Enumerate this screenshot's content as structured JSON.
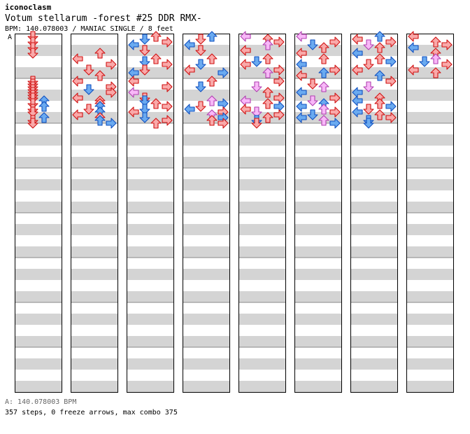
{
  "header": {
    "brand": "iconoclasm",
    "title": "Votum stellarum -forest #25 DDR RMX-",
    "subtitle": "BPM: 140.078003 / MANIAC SINGLE / 8 feet"
  },
  "marker": "A",
  "footer": {
    "bpm_line": "A: 140.078003 BPM",
    "stats_line": "357 steps, 0 freeze arrows, max combo 375"
  },
  "colors": {
    "red_fill": "#f9a9a9",
    "red_stroke": "#d01010",
    "blue_fill": "#6aaaf0",
    "blue_stroke": "#1050c0",
    "pink_fill": "#f8b8f8",
    "pink_stroke": "#b040b0",
    "stripe": "#d4d4d4"
  },
  "chart_data": {
    "type": "step-chart",
    "columns": 8,
    "measures_per_column": 8,
    "lanes": [
      "left",
      "down",
      "up",
      "right"
    ],
    "steps": [
      [
        0,
        0.25,
        1,
        "r"
      ],
      [
        0,
        0.75,
        1,
        "r"
      ],
      [
        0,
        1.25,
        1,
        "r"
      ],
      [
        0,
        1.75,
        1,
        "r"
      ],
      [
        1,
        1.75,
        2,
        "r"
      ],
      [
        1,
        2.25,
        0,
        "r"
      ],
      [
        1,
        2.75,
        3,
        "r"
      ],
      [
        1,
        3.25,
        1,
        "r"
      ],
      [
        1,
        3.75,
        2,
        "r"
      ],
      [
        1,
        4.25,
        0,
        "r"
      ],
      [
        1,
        4.75,
        3,
        "r"
      ],
      [
        1,
        5.0,
        1,
        "b"
      ],
      [
        1,
        5.25,
        3,
        "r"
      ],
      [
        2,
        0.25,
        2,
        "r"
      ],
      [
        2,
        0.5,
        1,
        "b"
      ],
      [
        2,
        0.75,
        3,
        "r"
      ],
      [
        2,
        1.0,
        0,
        "b"
      ],
      [
        2,
        1.5,
        1,
        "r"
      ],
      [
        2,
        2.25,
        2,
        "r"
      ],
      [
        2,
        2.5,
        1,
        "b"
      ],
      [
        2,
        2.75,
        3,
        "r"
      ],
      [
        2,
        3.25,
        1,
        "r"
      ],
      [
        2,
        3.5,
        0,
        "b"
      ],
      [
        2,
        4.25,
        0,
        "r"
      ],
      [
        2,
        4.75,
        3,
        "r"
      ],
      [
        2,
        5.25,
        0,
        "p"
      ],
      [
        2,
        5.75,
        1,
        "r"
      ],
      [
        3,
        0.25,
        2,
        "b"
      ],
      [
        3,
        0.5,
        1,
        "r"
      ],
      [
        3,
        1.0,
        0,
        "b"
      ],
      [
        3,
        1.5,
        1,
        "r"
      ],
      [
        3,
        2.25,
        2,
        "r"
      ],
      [
        3,
        2.75,
        1,
        "b"
      ],
      [
        3,
        3.25,
        0,
        "r"
      ],
      [
        3,
        3.5,
        3,
        "b"
      ],
      [
        3,
        4.25,
        2,
        "r"
      ],
      [
        3,
        4.75,
        1,
        "b"
      ],
      [
        4,
        0.25,
        0,
        "p"
      ],
      [
        4,
        0.5,
        2,
        "r"
      ],
      [
        4,
        0.75,
        3,
        "r"
      ],
      [
        4,
        1.0,
        2,
        "p"
      ],
      [
        4,
        1.5,
        0,
        "r"
      ],
      [
        4,
        2.25,
        2,
        "r"
      ],
      [
        4,
        2.5,
        1,
        "b"
      ],
      [
        4,
        2.75,
        0,
        "r"
      ],
      [
        4,
        3.25,
        3,
        "r"
      ],
      [
        4,
        3.5,
        2,
        "p"
      ],
      [
        4,
        4.25,
        3,
        "r"
      ],
      [
        4,
        4.75,
        1,
        "p"
      ],
      [
        4,
        5.25,
        2,
        "r"
      ],
      [
        4,
        5.75,
        3,
        "r"
      ],
      [
        5,
        0.25,
        0,
        "p"
      ],
      [
        5,
        0.75,
        3,
        "r"
      ],
      [
        5,
        1.0,
        1,
        "b"
      ],
      [
        5,
        1.25,
        2,
        "r"
      ],
      [
        5,
        1.75,
        0,
        "r"
      ],
      [
        5,
        2.25,
        2,
        "r"
      ],
      [
        5,
        2.75,
        0,
        "b"
      ],
      [
        5,
        3.25,
        3,
        "r"
      ],
      [
        5,
        3.5,
        2,
        "b"
      ],
      [
        5,
        3.75,
        0,
        "r"
      ],
      [
        5,
        4.5,
        1,
        "r"
      ],
      [
        5,
        4.75,
        2,
        "p"
      ],
      [
        5,
        5.25,
        0,
        "b"
      ],
      [
        5,
        5.75,
        3,
        "r"
      ],
      [
        6,
        0.25,
        2,
        "b"
      ],
      [
        6,
        0.5,
        0,
        "r"
      ],
      [
        6,
        0.75,
        3,
        "r"
      ],
      [
        6,
        1.0,
        1,
        "p"
      ],
      [
        6,
        1.25,
        2,
        "r"
      ],
      [
        6,
        1.75,
        0,
        "b"
      ],
      [
        6,
        2.25,
        2,
        "r"
      ],
      [
        6,
        2.5,
        3,
        "b"
      ],
      [
        6,
        2.75,
        1,
        "r"
      ],
      [
        6,
        3.25,
        0,
        "r"
      ],
      [
        6,
        3.75,
        2,
        "b"
      ],
      [
        6,
        4.25,
        3,
        "r"
      ],
      [
        6,
        4.75,
        1,
        "p"
      ],
      [
        6,
        5.25,
        0,
        "b"
      ],
      [
        6,
        5.75,
        2,
        "r"
      ],
      [
        7,
        0.25,
        0,
        "r"
      ],
      [
        7,
        0.75,
        2,
        "r"
      ],
      [
        7,
        1.0,
        3,
        "r"
      ],
      [
        7,
        1.25,
        0,
        "b"
      ],
      [
        7,
        1.75,
        2,
        "r"
      ],
      [
        7,
        2.25,
        2,
        "p"
      ],
      [
        7,
        2.5,
        1,
        "b"
      ],
      [
        7,
        2.75,
        3,
        "r"
      ],
      [
        7,
        3.25,
        0,
        "r"
      ],
      [
        7,
        3.5,
        2,
        "r"
      ],
      [
        0,
        4.25,
        1,
        "r"
      ],
      [
        0,
        4.5,
        1,
        "r"
      ],
      [
        0,
        4.75,
        1,
        "r"
      ],
      [
        0,
        5.0,
        1,
        "r"
      ],
      [
        0,
        5.25,
        1,
        "r"
      ],
      [
        0,
        5.5,
        1,
        "r"
      ],
      [
        0,
        5.75,
        1,
        "r"
      ],
      [
        0,
        6.0,
        2,
        "b"
      ],
      [
        0,
        6.25,
        1,
        "r"
      ],
      [
        0,
        6.5,
        2,
        "b"
      ],
      [
        0,
        6.75,
        1,
        "r"
      ],
      [
        0,
        7.0,
        1,
        "r"
      ],
      [
        0,
        7.5,
        2,
        "b"
      ],
      [
        0,
        7.75,
        1,
        "r"
      ],
      [
        0,
        8.0,
        1,
        "r"
      ],
      [
        1,
        5.75,
        0,
        "r"
      ],
      [
        1,
        6.0,
        2,
        "r"
      ],
      [
        1,
        6.25,
        2,
        "r"
      ],
      [
        1,
        6.5,
        2,
        "b"
      ],
      [
        1,
        6.75,
        1,
        "r"
      ],
      [
        1,
        7.0,
        2,
        "b"
      ],
      [
        1,
        7.25,
        0,
        "r"
      ],
      [
        1,
        7.5,
        2,
        "r"
      ],
      [
        1,
        7.75,
        2,
        "b"
      ],
      [
        1,
        8.0,
        3,
        "b"
      ],
      [
        2,
        6.0,
        1,
        "b"
      ],
      [
        2,
        6.25,
        2,
        "r"
      ],
      [
        2,
        6.5,
        3,
        "r"
      ],
      [
        2,
        6.75,
        1,
        "b"
      ],
      [
        2,
        7.0,
        0,
        "r"
      ],
      [
        2,
        7.5,
        1,
        "b"
      ],
      [
        2,
        7.75,
        3,
        "r"
      ],
      [
        2,
        8.0,
        2,
        "r"
      ],
      [
        3,
        6.0,
        2,
        "p"
      ],
      [
        3,
        6.25,
        3,
        "b"
      ],
      [
        3,
        6.5,
        1,
        "r"
      ],
      [
        3,
        6.75,
        0,
        "b"
      ],
      [
        3,
        7.0,
        3,
        "r"
      ],
      [
        3,
        7.25,
        2,
        "p"
      ],
      [
        3,
        7.5,
        3,
        "b"
      ],
      [
        3,
        7.75,
        2,
        "r"
      ],
      [
        3,
        8.0,
        3,
        "r"
      ],
      [
        4,
        6.0,
        0,
        "p"
      ],
      [
        4,
        6.25,
        2,
        "r"
      ],
      [
        4,
        6.5,
        3,
        "b"
      ],
      [
        4,
        6.75,
        0,
        "r"
      ],
      [
        4,
        7.0,
        1,
        "p"
      ],
      [
        4,
        7.25,
        3,
        "r"
      ],
      [
        4,
        7.5,
        2,
        "r"
      ],
      [
        4,
        7.75,
        1,
        "b"
      ],
      [
        4,
        8.0,
        1,
        "r"
      ],
      [
        5,
        6.0,
        1,
        "p"
      ],
      [
        5,
        6.25,
        2,
        "b"
      ],
      [
        5,
        6.5,
        0,
        "b"
      ],
      [
        5,
        6.75,
        2,
        "p"
      ],
      [
        5,
        7.0,
        3,
        "r"
      ],
      [
        5,
        7.25,
        1,
        "b"
      ],
      [
        5,
        7.5,
        0,
        "b"
      ],
      [
        5,
        7.75,
        2,
        "p"
      ],
      [
        5,
        8.0,
        3,
        "b"
      ],
      [
        6,
        6.0,
        0,
        "b"
      ],
      [
        6,
        6.25,
        2,
        "r"
      ],
      [
        6,
        6.5,
        3,
        "b"
      ],
      [
        6,
        6.75,
        1,
        "r"
      ],
      [
        6,
        7.0,
        0,
        "b"
      ],
      [
        6,
        7.25,
        2,
        "r"
      ],
      [
        6,
        7.5,
        3,
        "r"
      ],
      [
        6,
        7.75,
        1,
        "b"
      ],
      [
        6,
        8.0,
        1,
        "b"
      ]
    ]
  }
}
